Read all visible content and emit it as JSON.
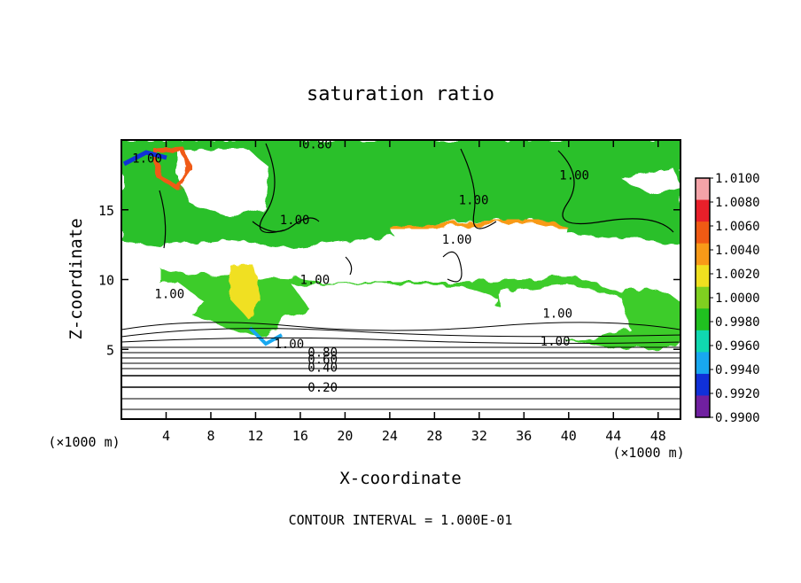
{
  "chart_data": {
    "type": "heatmap",
    "title": "saturation ratio",
    "xlabel": "X-coordinate",
    "ylabel": "Z-coordinate",
    "x_unit": "(×1000 m)",
    "y_unit": "(×1000 m)",
    "xlim": [
      0,
      50
    ],
    "ylim": [
      0,
      20
    ],
    "x_ticks": [
      4,
      8,
      12,
      16,
      20,
      24,
      28,
      32,
      36,
      40,
      44,
      48
    ],
    "y_ticks": [
      5,
      10,
      15
    ],
    "footer": "CONTOUR INTERVAL = 1.000E-01",
    "colorbar": {
      "min": 0.99,
      "max": 1.01,
      "tick_labels": [
        "1.0100",
        "1.0080",
        "1.0060",
        "1.0040",
        "1.0020",
        "1.0000",
        "0.9980",
        "0.9960",
        "0.9940",
        "0.9920",
        "0.9900"
      ],
      "colors": [
        "#f4a3a8",
        "#e8202a",
        "#f05a14",
        "#f89a18",
        "#f0e020",
        "#80d020",
        "#20c020",
        "#10d8b0",
        "#18a8f0",
        "#1030d8",
        "#7020a0"
      ]
    },
    "contour_labels": [
      {
        "text": "0.80",
        "x": 17.5,
        "z": 19.7
      },
      {
        "text": "1.00",
        "x": 2.3,
        "z": 18.7
      },
      {
        "text": "1.00",
        "x": 40.5,
        "z": 17.5
      },
      {
        "text": "1.00",
        "x": 31.5,
        "z": 15.7
      },
      {
        "text": "1.00",
        "x": 15.5,
        "z": 14.3
      },
      {
        "text": "1.00",
        "x": 30.0,
        "z": 12.9
      },
      {
        "text": "1.00",
        "x": 17.3,
        "z": 10.0
      },
      {
        "text": "1.00",
        "x": 4.3,
        "z": 9.0
      },
      {
        "text": "1.00",
        "x": 39.0,
        "z": 7.6
      },
      {
        "text": "1.00",
        "x": 38.8,
        "z": 5.6
      },
      {
        "text": "1.00",
        "x": 15.0,
        "z": 5.4
      },
      {
        "text": "0.80",
        "x": 18.0,
        "z": 4.8
      },
      {
        "text": "0.60",
        "x": 18.0,
        "z": 4.3
      },
      {
        "text": "0.40",
        "x": 18.0,
        "z": 3.7
      },
      {
        "text": "0.20",
        "x": 18.0,
        "z": 2.3
      }
    ]
  }
}
